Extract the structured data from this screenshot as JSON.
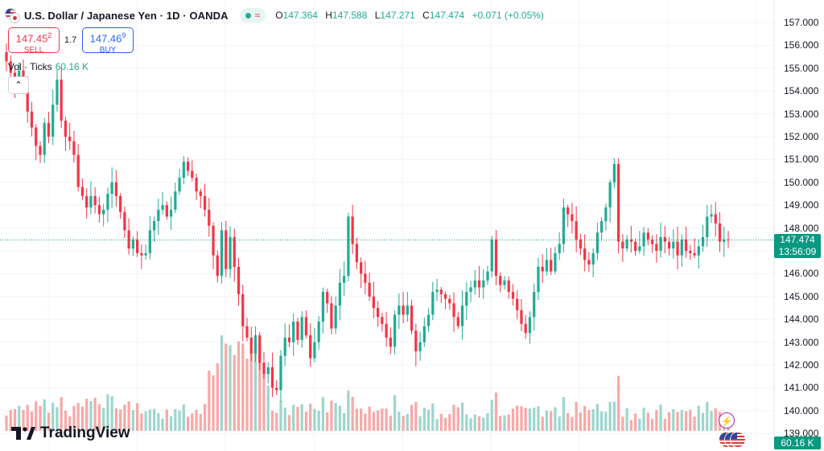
{
  "header": {
    "title": "U.S. Dollar / Japanese Yen · 1D · OANDA",
    "market_wave": "≈",
    "ohlc": [
      {
        "k": "O",
        "v": "147.364"
      },
      {
        "k": "H",
        "v": "147.588"
      },
      {
        "k": "L",
        "v": "147.271"
      },
      {
        "k": "C",
        "v": "147.474"
      },
      {
        "k": "",
        "v": "+0.071 (+0.05%)"
      }
    ]
  },
  "trade": {
    "sell_price": "147.45",
    "sell_sup": "2",
    "sell_label": "SELL",
    "spread": "1.7",
    "buy_price": "147.46",
    "buy_sup": "9",
    "buy_label": "BUY"
  },
  "volume": {
    "label": "Vol · Ticks",
    "value": "60.16 K"
  },
  "axis": {
    "ticks": [
      "157.000",
      "156.000",
      "155.000",
      "154.000",
      "153.000",
      "152.000",
      "151.000",
      "150.000",
      "149.000",
      "148.000",
      "147.000",
      "146.000",
      "145.000",
      "144.000",
      "143.000",
      "142.000",
      "141.000",
      "140.000",
      "139.000"
    ]
  },
  "last_price": {
    "price": "147.474",
    "countdown": "13:56:09"
  },
  "branding": "TradingView",
  "colors": {
    "up": "#22ab94",
    "down": "#f23645",
    "up_vol": "#9dd6cd",
    "down_vol": "#f7a9a7",
    "last_line": "#089981"
  },
  "chart_data": {
    "type": "candlestick",
    "symbol": "USD/JPY",
    "interval": "1D",
    "ylim": [
      139.0,
      157.0
    ],
    "last_close": 147.474,
    "close_sequence": [
      155.3,
      154.8,
      154.3,
      154.9,
      154.4,
      153.1,
      152.4,
      151.6,
      151.2,
      152.6,
      152.0,
      153.4,
      154.5,
      152.7,
      152.0,
      151.8,
      151.2,
      149.8,
      149.4,
      148.9,
      149.4,
      149.0,
      148.6,
      148.8,
      149.5,
      150.0,
      149.4,
      148.7,
      147.9,
      147.1,
      147.5,
      146.9,
      146.8,
      146.9,
      147.9,
      148.3,
      148.8,
      149.0,
      148.5,
      148.8,
      149.6,
      150.2,
      150.9,
      150.5,
      150.2,
      149.6,
      149.4,
      148.8,
      148.1,
      146.8,
      145.9,
      147.9,
      146.2,
      147.6,
      146.3,
      145.1,
      143.7,
      143.2,
      142.5,
      143.3,
      142.1,
      141.6,
      141.9,
      141.0,
      140.9,
      142.4,
      143.2,
      143.0,
      143.9,
      143.1,
      144.1,
      143.3,
      142.3,
      143.0,
      143.9,
      145.2,
      144.7,
      143.6,
      144.6,
      145.6,
      145.9,
      148.5,
      147.3,
      146.5,
      146.0,
      145.6,
      145.0,
      144.5,
      144.1,
      143.8,
      143.2,
      142.8,
      144.2,
      144.6,
      144.2,
      144.6,
      143.5,
      142.6,
      143.0,
      143.7,
      144.2,
      145.2,
      145.3,
      145.1,
      144.9,
      144.7,
      144.1,
      143.7,
      144.6,
      145.2,
      145.4,
      145.7,
      145.4,
      145.7,
      146.1,
      147.5,
      145.9,
      145.5,
      145.7,
      145.2,
      144.9,
      144.4,
      143.8,
      143.4,
      144.1,
      145.2,
      146.3,
      146.1,
      146.6,
      146.1,
      146.9,
      147.3,
      148.9,
      148.6,
      148.3,
      147.5,
      147.1,
      146.6,
      146.4,
      146.9,
      147.8,
      148.3,
      148.9,
      150.0,
      150.8,
      147.4,
      147.1,
      147.5,
      147.4,
      147.0,
      147.2,
      147.8,
      147.5,
      147.3,
      147.0,
      147.6,
      147.4,
      147.1,
      147.4,
      146.8,
      147.5,
      147.0,
      146.9,
      146.8,
      147.2,
      147.6,
      148.5,
      148.6,
      148.2,
      147.4,
      147.5,
      147.474
    ]
  }
}
